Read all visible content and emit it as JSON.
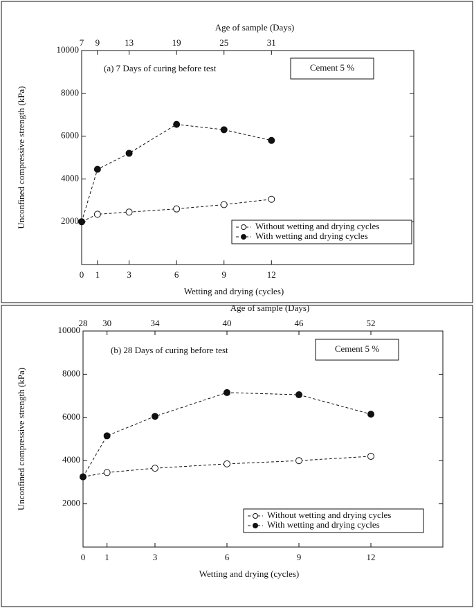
{
  "chart_data": [
    {
      "type": "line",
      "top_title": "Age of sample (Days)",
      "annotation": "(a) 7 Days of curing before test",
      "box_label": "Cement 5 %",
      "ylabel": "Unconfined compressive strength (kPa)",
      "xlabel": "Wetting and drying (cycles)",
      "x": [
        0,
        1,
        3,
        6,
        9,
        12
      ],
      "xlim": [
        0,
        21
      ],
      "xticks": [
        0,
        1,
        3,
        6,
        9,
        12
      ],
      "x2lim": [
        7,
        49
      ],
      "x2ticks": [
        7,
        9,
        13,
        19,
        25,
        31
      ],
      "ylim": [
        0,
        10000
      ],
      "yticks": [
        2000,
        4000,
        6000,
        8000,
        10000
      ],
      "series": [
        {
          "name": "Without wetting and drying cycles",
          "color": "#111111",
          "marker_fill": "#ffffff",
          "values": [
            2000,
            2350,
            2450,
            2600,
            2800,
            3050
          ]
        },
        {
          "name": "With wetting and drying cycles",
          "color": "#111111",
          "marker_fill": "#111111",
          "values": [
            2000,
            4450,
            5200,
            6550,
            6300,
            5800
          ]
        }
      ]
    },
    {
      "type": "line",
      "top_title": "Age of sample (Days)",
      "annotation": "(b) 28 Days of curing before test",
      "box_label": "Cement 5 %",
      "ylabel": "Unconfined compressive strength (kPa)",
      "xlabel": "Wetting and drying (cycles)",
      "x": [
        0,
        1,
        3,
        6,
        9,
        12
      ],
      "xlim": [
        0,
        15
      ],
      "xticks": [
        0,
        1,
        3,
        6,
        9,
        12
      ],
      "x2lim": [
        28,
        58
      ],
      "x2ticks": [
        28,
        30,
        34,
        40,
        46,
        52
      ],
      "ylim": [
        0,
        10000
      ],
      "yticks": [
        2000,
        4000,
        6000,
        8000,
        10000
      ],
      "series": [
        {
          "name": "Without wetting and drying cycles",
          "color": "#111111",
          "marker_fill": "#ffffff",
          "values": [
            3250,
            3450,
            3650,
            3850,
            4000,
            4200
          ]
        },
        {
          "name": "With wetting and drying cycles",
          "color": "#111111",
          "marker_fill": "#111111",
          "values": [
            3250,
            5150,
            6050,
            7150,
            7050,
            6150
          ]
        }
      ]
    }
  ]
}
